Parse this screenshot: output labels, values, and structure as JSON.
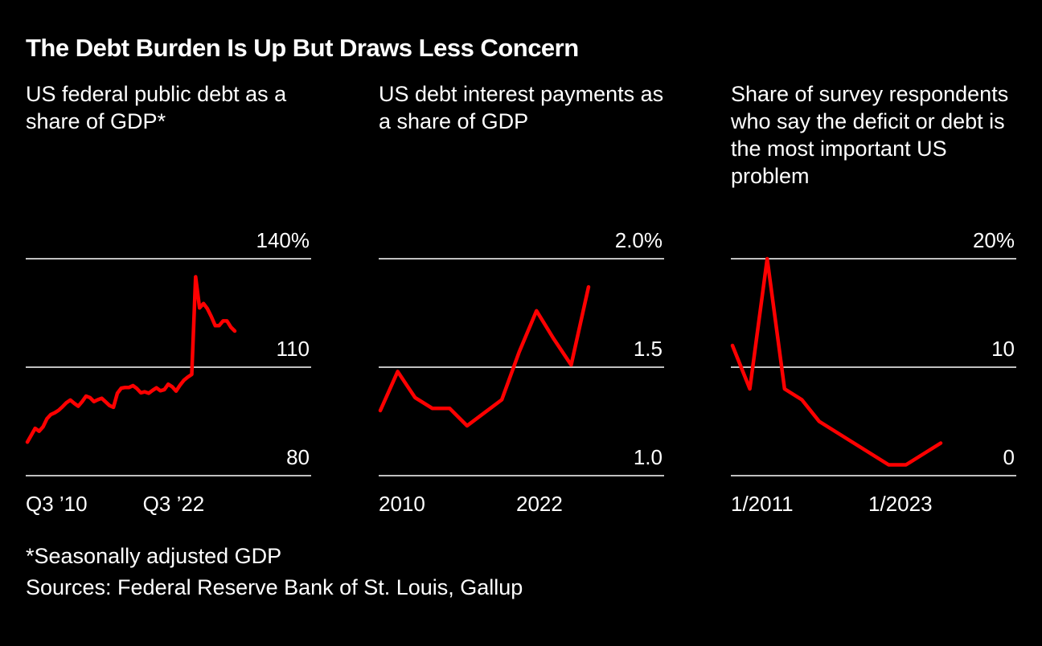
{
  "title": "The Debt Burden Is Up But Draws Less Concern",
  "footnote": "*Seasonally adjusted GDP",
  "sources": "Sources: Federal Reserve Bank of St. Louis, Gallup",
  "colors": {
    "background": "#000000",
    "line": "#ff0000",
    "grid": "#ffffff",
    "text": "#ffffff"
  },
  "chart_data": [
    {
      "type": "line",
      "title": "US federal public debt as a share of GDP*",
      "unit": "%",
      "ylim": [
        80,
        140
      ],
      "yticks": [
        "80",
        "110",
        "140%"
      ],
      "ytick_values": [
        80,
        110,
        140
      ],
      "xticks": [
        {
          "label": "Q3 ’10",
          "index": 0
        },
        {
          "label": "Q3 ’22",
          "index": 48
        }
      ],
      "grid": true,
      "values": [
        89.3,
        91.2,
        93.1,
        92.3,
        93.5,
        95.7,
        96.9,
        97.4,
        98.1,
        99.1,
        100.2,
        100.9,
        100.0,
        99.2,
        100.5,
        102.0,
        101.6,
        100.5,
        101.0,
        101.4,
        100.4,
        99.4,
        98.9,
        102.8,
        104.2,
        104.4,
        104.4,
        104.9,
        104.1,
        102.9,
        103.2,
        102.8,
        103.6,
        104.3,
        103.5,
        103.8,
        105.3,
        104.6,
        103.4,
        105.0,
        106.4,
        107.3,
        108.0,
        135.0,
        126.4,
        127.6,
        126.2,
        124.0,
        121.5,
        121.5,
        122.8,
        122.8,
        121.1,
        120.0
      ]
    },
    {
      "type": "line",
      "title": "US debt interest payments as a share of GDP",
      "unit": "%",
      "ylim": [
        1.0,
        2.0
      ],
      "yticks": [
        "1.0",
        "1.5",
        "2.0%"
      ],
      "ytick_values": [
        1.0,
        1.5,
        2.0
      ],
      "x": [
        2010,
        2011,
        2012,
        2013,
        2014,
        2015,
        2016,
        2017,
        2018,
        2019,
        2020,
        2021,
        2022
      ],
      "xticks": [
        {
          "label": "2010",
          "index": 0
        },
        {
          "label": "2022",
          "index": 12
        }
      ],
      "grid": true,
      "values": [
        1.3,
        1.48,
        1.36,
        1.31,
        1.31,
        1.23,
        1.29,
        1.35,
        1.57,
        1.76,
        1.63,
        1.51,
        1.87
      ]
    },
    {
      "type": "line",
      "title": "Share of survey respondents who say the deficit or debt is the most important US problem",
      "unit": "%",
      "ylim": [
        0,
        20
      ],
      "yticks": [
        "0",
        "10",
        "20%"
      ],
      "ytick_values": [
        0,
        10,
        20
      ],
      "x": [
        "1/2011",
        "1/2012",
        "1/2013",
        "1/2014",
        "1/2015",
        "1/2016",
        "1/2017",
        "1/2018",
        "1/2019",
        "1/2020",
        "1/2021",
        "1/2022",
        "1/2023"
      ],
      "xticks": [
        {
          "label": "1/2011",
          "index": 0
        },
        {
          "label": "1/2023",
          "index": 12
        }
      ],
      "grid": true,
      "values": [
        12,
        8,
        20,
        8,
        7,
        5,
        4,
        3,
        2,
        1,
        1,
        2,
        3
      ]
    }
  ]
}
